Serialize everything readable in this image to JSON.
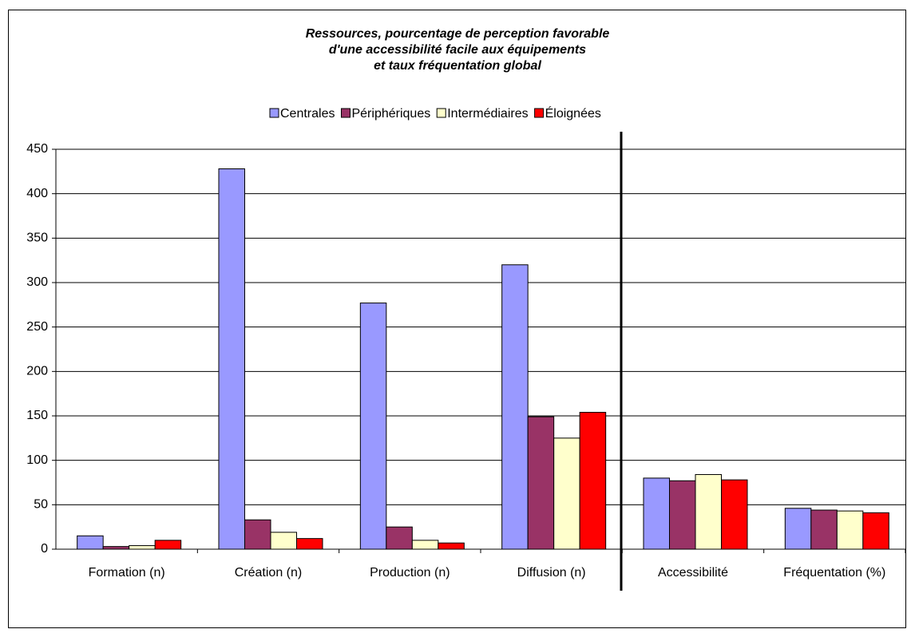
{
  "chart_data": {
    "type": "bar",
    "title": [
      "Ressources, pourcentage de perception favorable",
      "d'une accessibilité facile aux équipements",
      "et  taux fréquentation global"
    ],
    "categories": [
      "Formation (n)",
      "Création (n)",
      "Production (n)",
      "Diffusion (n)",
      "Accessibilité",
      "Fréquentation (%)"
    ],
    "series": [
      {
        "name": "Centrales",
        "color": "#9999ff",
        "values": [
          15,
          428,
          277,
          320,
          80,
          46
        ]
      },
      {
        "name": "Périphériques",
        "color": "#993366",
        "values": [
          3,
          33,
          25,
          149,
          77,
          44
        ]
      },
      {
        "name": "Intermédiaires",
        "color": "#ffffcc",
        "values": [
          4,
          19,
          10,
          125,
          84,
          43
        ]
      },
      {
        "name": "Éloignées",
        "color": "#ff0000",
        "values": [
          10,
          12,
          7,
          154,
          78,
          41
        ]
      }
    ],
    "ylim": [
      0,
      450
    ],
    "yticks": [
      0,
      50,
      100,
      150,
      200,
      250,
      300,
      350,
      400,
      450
    ],
    "grid": true,
    "legend": "top"
  }
}
